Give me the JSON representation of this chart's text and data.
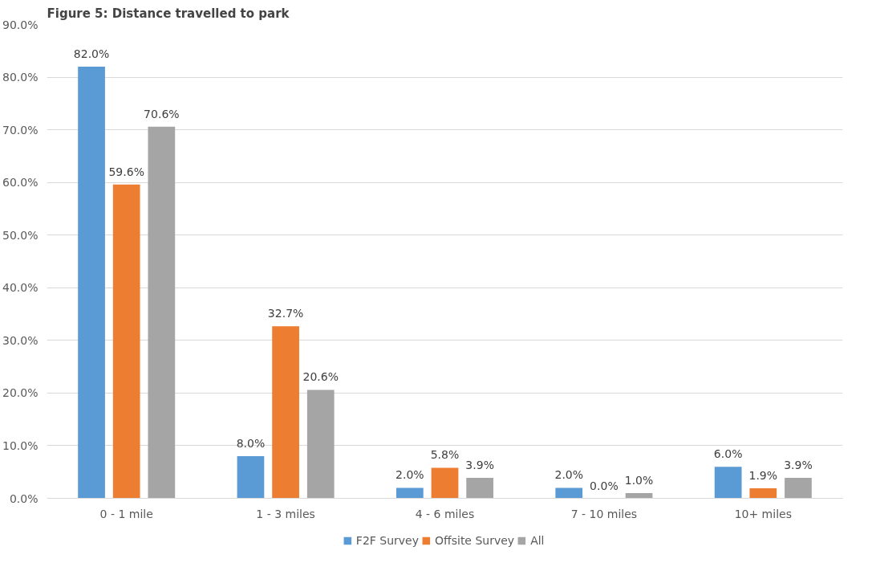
{
  "chart_data": {
    "type": "bar",
    "title": "Figure 5: Distance travelled to park",
    "categories": [
      "0 - 1 mile",
      "1 - 3 miles",
      "4 - 6 miles",
      "7 - 10 miles",
      "10+ miles"
    ],
    "series": [
      {
        "name": "F2F Survey",
        "color": "#5b9bd5",
        "values": [
          82.0,
          8.0,
          2.0,
          2.0,
          6.0
        ],
        "value_labels": [
          "82.0%",
          "8.0%",
          "2.0%",
          "2.0%",
          "6.0%"
        ]
      },
      {
        "name": "Offsite Survey",
        "color": "#ed7d31",
        "values": [
          59.6,
          32.7,
          5.8,
          0.0,
          1.9
        ],
        "value_labels": [
          "59.6%",
          "32.7%",
          "5.8%",
          "0.0%",
          "1.9%"
        ]
      },
      {
        "name": "All",
        "color": "#a5a5a5",
        "values": [
          70.6,
          20.6,
          3.9,
          1.0,
          3.9
        ],
        "value_labels": [
          "70.6%",
          "20.6%",
          "3.9%",
          "1.0%",
          "3.9%"
        ]
      }
    ],
    "ylim": [
      0,
      90
    ],
    "yticks": [
      {
        "value": 0,
        "label": "0.0%"
      },
      {
        "value": 10,
        "label": "10.0%"
      },
      {
        "value": 20,
        "label": "20.0%"
      },
      {
        "value": 30,
        "label": "30.0%"
      },
      {
        "value": 40,
        "label": "40.0%"
      },
      {
        "value": 50,
        "label": "50.0%"
      },
      {
        "value": 60,
        "label": "60.0%"
      },
      {
        "value": 70,
        "label": "70.0%"
      },
      {
        "value": 80,
        "label": "80.0%"
      },
      {
        "value": 90,
        "label": "90.0%"
      }
    ],
    "grid": "y",
    "legend": "bottom"
  }
}
